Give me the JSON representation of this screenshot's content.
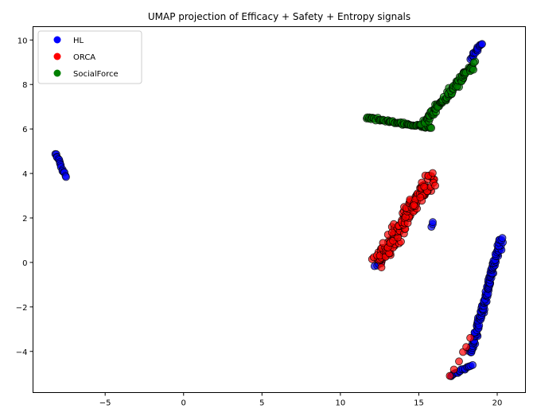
{
  "chart_data": {
    "type": "scatter",
    "title": "UMAP projection of Efficacy + Safety + Entropy signals",
    "xlabel": "",
    "ylabel": "",
    "xlim": [
      -9.6,
      21.8
    ],
    "ylim": [
      -5.85,
      10.6
    ],
    "xticks": [
      -5,
      0,
      5,
      10,
      15,
      20
    ],
    "yticks": [
      -4,
      -2,
      0,
      2,
      4,
      6,
      8,
      10
    ],
    "grid": false,
    "legend_position": "top-left",
    "series": [
      {
        "name": "HL",
        "color": "#0000ff",
        "clusters": [
          {
            "x0": -8.2,
            "y0": 4.95,
            "x1": -7.5,
            "y1": 3.85,
            "n": 16,
            "spread": 0.08
          },
          {
            "x0": 18.3,
            "y0": 9.2,
            "x1": 19.0,
            "y1": 9.85,
            "n": 16,
            "spread": 0.1
          },
          {
            "x0": 17.0,
            "y0": -5.1,
            "x1": 18.4,
            "y1": -4.6,
            "n": 18,
            "spread": 0.08
          },
          {
            "x0": 18.3,
            "y0": -4.1,
            "x1": 20.25,
            "y1": 1.05,
            "n": 140,
            "spread": 0.2
          },
          {
            "x0": 12.2,
            "y0": -0.2,
            "x1": 12.6,
            "y1": 0.0,
            "n": 4,
            "spread": 0.05
          },
          {
            "x0": 15.8,
            "y0": 1.6,
            "x1": 15.9,
            "y1": 1.8,
            "n": 3,
            "spread": 0.05
          }
        ]
      },
      {
        "name": "ORCA",
        "color": "#ff0000",
        "clusters": [
          {
            "x0": 12.3,
            "y0": 0.0,
            "x1": 15.8,
            "y1": 3.8,
            "n": 170,
            "spread": 0.55
          },
          {
            "x0": 17.0,
            "y0": -5.1,
            "x1": 18.3,
            "y1": -3.4,
            "n": 6,
            "spread": 0.1
          }
        ]
      },
      {
        "name": "SocialForce",
        "color": "#008000",
        "clusters": [
          {
            "x0": 11.7,
            "y0": 6.5,
            "x1": 15.8,
            "y1": 6.05,
            "n": 70,
            "spread": 0.1
          },
          {
            "x0": 15.3,
            "y0": 6.3,
            "x1": 18.5,
            "y1": 8.9,
            "n": 110,
            "spread": 0.25
          }
        ]
      }
    ]
  }
}
